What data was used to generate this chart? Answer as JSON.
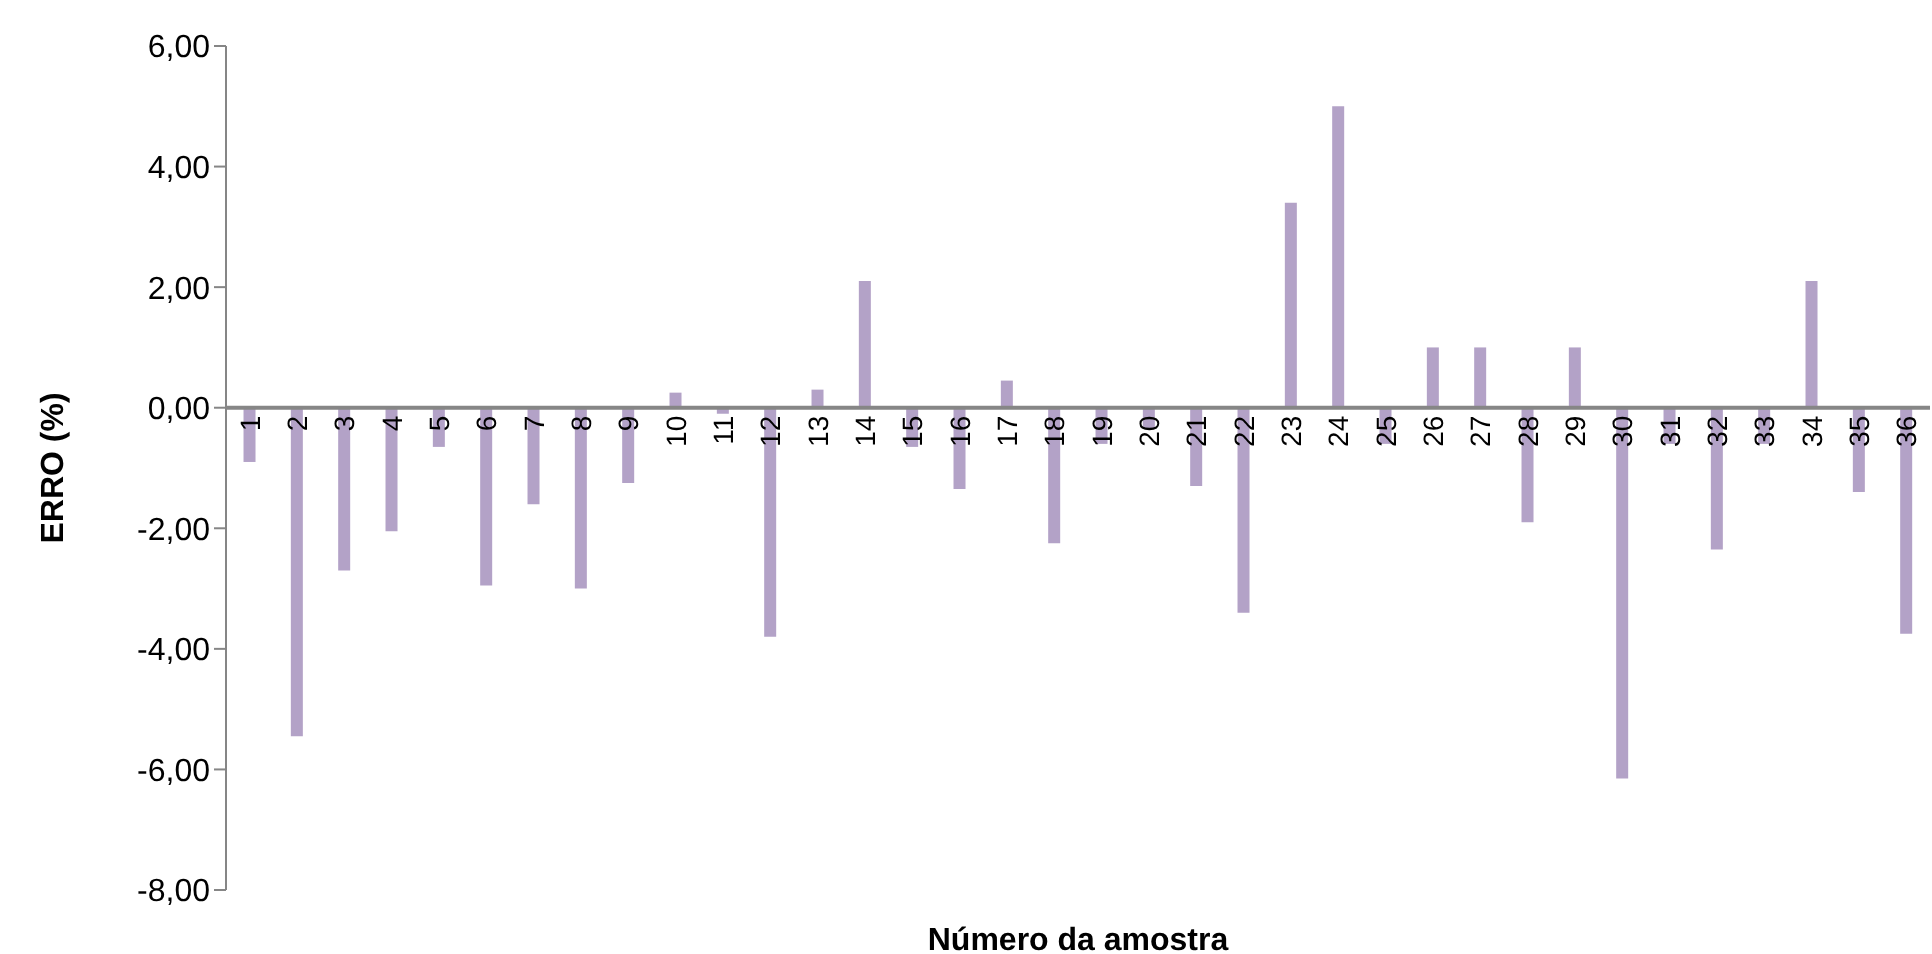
{
  "chart_data": {
    "type": "bar",
    "xlabel": "Número da amostra",
    "ylabel": "ERRO (%)",
    "categories": [
      "1",
      "2",
      "3",
      "4",
      "5",
      "6",
      "7",
      "8",
      "9",
      "10",
      "11",
      "12",
      "13",
      "14",
      "15",
      "16",
      "17",
      "18",
      "19",
      "20",
      "21",
      "22",
      "23",
      "24",
      "25",
      "26",
      "27",
      "28",
      "29",
      "30",
      "31",
      "32",
      "33",
      "34",
      "35",
      "36"
    ],
    "values": [
      -0.9,
      -5.45,
      -2.7,
      -2.05,
      -0.65,
      -2.95,
      -1.6,
      -3.0,
      -1.25,
      0.25,
      -0.1,
      -3.8,
      0.3,
      2.1,
      -0.65,
      -1.35,
      0.45,
      -2.25,
      -0.6,
      -0.35,
      -1.3,
      -3.4,
      3.4,
      5.0,
      -0.6,
      1.0,
      1.0,
      -1.9,
      1.0,
      -6.15,
      -0.6,
      -2.35,
      -0.6,
      2.1,
      -1.4,
      -3.75
    ],
    "color": "#b3a2c7",
    "ylim": [
      -8,
      6
    ],
    "yticks": [
      {
        "value": -8,
        "label": "-8,00"
      },
      {
        "value": -6,
        "label": "-6,00"
      },
      {
        "value": -4,
        "label": "-4,00"
      },
      {
        "value": -2,
        "label": "-2,00"
      },
      {
        "value": 0,
        "label": "0,00"
      },
      {
        "value": 2,
        "label": "2,00"
      },
      {
        "value": 4,
        "label": "4,00"
      },
      {
        "value": 6,
        "label": "6,00"
      }
    ],
    "grid": false,
    "legend": false
  }
}
